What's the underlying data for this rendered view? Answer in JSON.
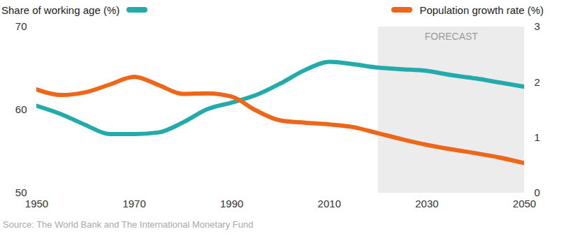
{
  "chart_data": {
    "type": "line",
    "x": [
      1950,
      1955,
      1960,
      1965,
      1970,
      1975,
      1980,
      1985,
      1990,
      1995,
      2000,
      2005,
      2010,
      2015,
      2020,
      2025,
      2030,
      2035,
      2040,
      2045,
      2050
    ],
    "series": [
      {
        "name": "Share of working age (%)",
        "color": "#23aaaa",
        "values": [
          60.5,
          59.5,
          58.2,
          57.1,
          57.1,
          57.3,
          58.5,
          60.1,
          60.9,
          61.8,
          63.2,
          64.8,
          65.8,
          65.5,
          65.1,
          64.9,
          64.7,
          64.2,
          63.8,
          63.3,
          62.8
        ]
      },
      {
        "name": "Population growth rate (%)",
        "color": "#ee6618",
        "axis": "y2",
        "values": [
          1.87,
          1.77,
          1.82,
          1.96,
          2.1,
          1.95,
          1.79,
          1.8,
          1.74,
          1.49,
          1.31,
          1.27,
          1.24,
          1.19,
          1.08,
          0.97,
          0.87,
          0.79,
          0.72,
          0.64,
          0.54
        ]
      }
    ],
    "xlim": [
      1950,
      2050
    ],
    "xticks": [
      1950,
      1970,
      1990,
      2010,
      2030,
      2050
    ],
    "ylim": [
      50,
      70
    ],
    "yticks": [
      50,
      60,
      70
    ],
    "y2lim": [
      0,
      3
    ],
    "y2ticks": [
      0,
      1,
      2,
      3
    ],
    "annotations": [
      {
        "text": "FORECAST",
        "x_start": 2020,
        "x_end": 2050
      }
    ],
    "caption": "Source: The World Bank and The International Monetary Fund",
    "grid": false
  }
}
